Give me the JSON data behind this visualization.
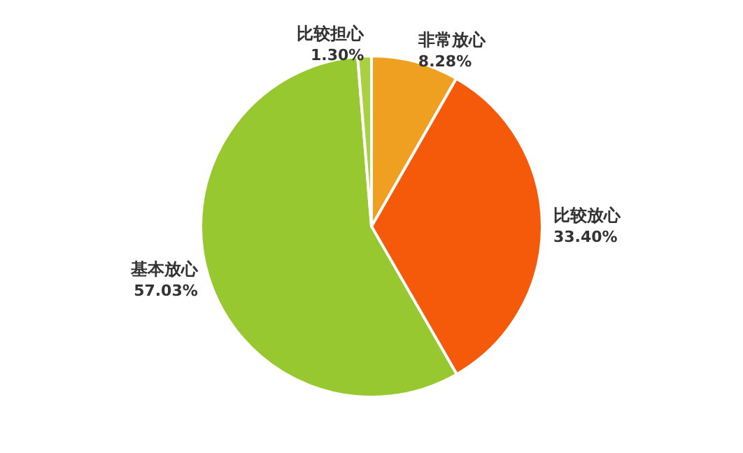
{
  "chart_data": {
    "type": "pie",
    "categories": [
      "非常放心",
      "比较放心",
      "基本放心",
      "比较担心"
    ],
    "values": [
      8.28,
      33.4,
      57.03,
      1.3
    ],
    "value_labels": [
      "8.28%",
      "33.40%",
      "57.03%",
      "1.30%"
    ],
    "colors": [
      "#f0a020",
      "#f55a0a",
      "#98c830",
      "#a8d040"
    ]
  }
}
